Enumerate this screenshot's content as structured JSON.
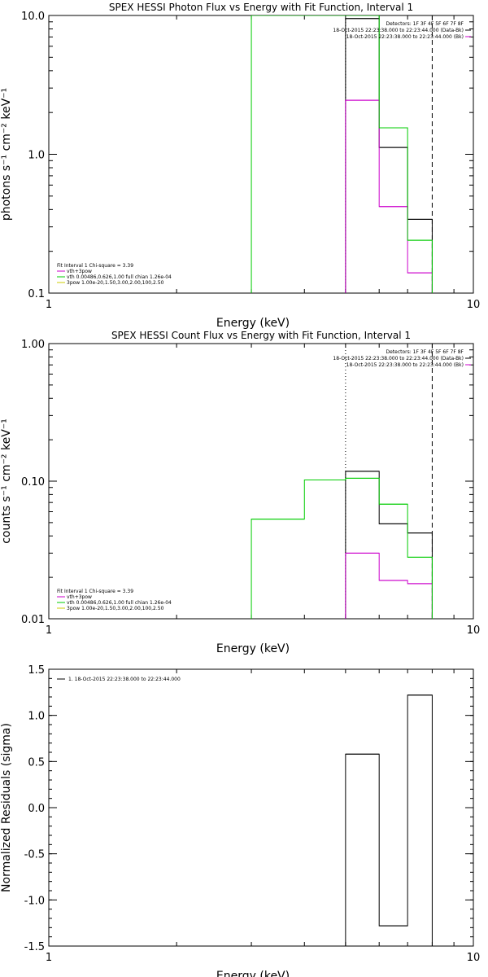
{
  "chart_data": [
    {
      "type": "line",
      "title": "SPEX HESSI Photon Flux vs Energy with Fit Function, Interval 1",
      "xlabel": "Energy (keV)",
      "ylabel": "photons s⁻¹ cm⁻² keV⁻¹",
      "xscale": "log",
      "yscale": "log",
      "xlim": [
        1,
        10
      ],
      "ylim": [
        0.1,
        10
      ],
      "xticks": [
        {
          "v": 1,
          "label": "1"
        },
        {
          "v": 10,
          "label": "10"
        }
      ],
      "yticks": [
        {
          "v": 0.1,
          "label": "0.1"
        },
        {
          "v": 1,
          "label": "1.0"
        },
        {
          "v": 10,
          "label": "10.0"
        }
      ],
      "header_right": [
        "Detectors: 1F 3F 4F 5F 6F 7F 8F",
        "18-Oct-2015 22:23:38.000 to 22:23:44.000 (Data-Bk)",
        "18-Oct-2015 22:23:38.000 to 22:23:44.000 (Bk)"
      ],
      "legend_left": [
        "Fit Interval 1    Chi-square = 3.39",
        "vth+3pow",
        "vth 0.00486,0.626,1.00  full chian 1.26e-04",
        "3pow 1.00e-20,1.50,3.00,2.00,100,2.50"
      ],
      "series": [
        {
          "name": "18-Oct-2015 22:23:38.000 to 22:23:44.000 (Data-Bk)",
          "color": "#000000",
          "edges": [
            5.0,
            6.0,
            7.0,
            8.0
          ],
          "values": [
            9.5,
            1.12,
            0.34
          ]
        },
        {
          "name": "18-Oct-2015 22:23:38.000 to 22:23:44.000 (Bk)",
          "color": "#cc00cc",
          "edges": [
            5.0,
            6.0,
            7.0,
            8.0
          ],
          "values": [
            2.45,
            0.42,
            0.14
          ]
        },
        {
          "name": "vth+3pow",
          "color": "#00cc00",
          "edges": [
            3.0,
            5.0,
            6.0,
            7.0,
            8.0
          ],
          "values": [
            10.0,
            10.0,
            1.55,
            0.24
          ]
        }
      ],
      "vlines": [
        {
          "x": 5.0,
          "style": "dotted",
          "color": "#000000"
        },
        {
          "x": 8.0,
          "style": "dashed",
          "color": "#000000"
        }
      ]
    },
    {
      "type": "line",
      "title": "SPEX HESSI Count Flux vs Energy with Fit Function, Interval 1",
      "xlabel": "Energy (keV)",
      "ylabel": "counts s⁻¹ cm⁻² keV⁻¹",
      "xscale": "log",
      "yscale": "log",
      "xlim": [
        1,
        10
      ],
      "ylim": [
        0.01,
        1
      ],
      "xticks": [
        {
          "v": 1,
          "label": "1"
        },
        {
          "v": 10,
          "label": "10"
        }
      ],
      "yticks": [
        {
          "v": 0.01,
          "label": "0.01"
        },
        {
          "v": 0.1,
          "label": "0.10"
        },
        {
          "v": 1,
          "label": "1.00"
        }
      ],
      "header_right": [
        "Detectors: 1F 3F 4F 5F 6F 7F 8F",
        "18-Oct-2015 22:23:38.000 to 22:23:44.000 (Data-Bk)",
        "18-Oct-2015 22:23:38.000 to 22:23:44.000 (Bk)"
      ],
      "legend_left": [
        "Fit Interval 1    Chi-square = 3.39",
        "vth+3pow",
        "vth 0.00486,0.626,1.00  full chian 1.26e-04",
        "3pow 1.00e-20,1.50,3.00,2.00,100,2.50"
      ],
      "series": [
        {
          "name": "18-Oct-2015 22:23:38.000 to 22:23:44.000 (Data-Bk)",
          "color": "#000000",
          "edges": [
            5.0,
            6.0,
            7.0,
            8.0
          ],
          "values": [
            0.118,
            0.049,
            0.042
          ]
        },
        {
          "name": "18-Oct-2015 22:23:38.000 to 22:23:44.000 (Bk)",
          "color": "#cc00cc",
          "edges": [
            5.0,
            6.0,
            7.0,
            8.0
          ],
          "values": [
            0.03,
            0.019,
            0.018
          ]
        },
        {
          "name": "vth+3pow",
          "color": "#00cc00",
          "edges": [
            3.0,
            4.0,
            5.0,
            6.0,
            7.0,
            8.0
          ],
          "values": [
            0.053,
            0.102,
            0.105,
            0.068,
            0.028
          ]
        }
      ],
      "vlines": [
        {
          "x": 5.0,
          "style": "dotted",
          "color": "#000000"
        },
        {
          "x": 8.0,
          "style": "dashed",
          "color": "#000000"
        }
      ]
    },
    {
      "type": "line",
      "title": "",
      "xlabel": "Energy (keV)",
      "ylabel": "Normalized Residuals (sigma)",
      "xscale": "log",
      "yscale": "linear",
      "xlim": [
        1,
        10
      ],
      "ylim": [
        -1.5,
        1.5
      ],
      "xticks": [
        {
          "v": 1,
          "label": "1"
        },
        {
          "v": 10,
          "label": "10"
        }
      ],
      "yticks": [
        {
          "v": -1.5,
          "label": "-1.5"
        },
        {
          "v": -1.0,
          "label": "-1.0"
        },
        {
          "v": -0.5,
          "label": "-0.5"
        },
        {
          "v": 0.0,
          "label": "0.0"
        },
        {
          "v": 0.5,
          "label": "0.5"
        },
        {
          "v": 1.0,
          "label": "1.0"
        },
        {
          "v": 1.5,
          "label": "1.5"
        }
      ],
      "legend_left": [
        "1. 18-Oct-2015 22:23:38.000 to 22:23:44.000"
      ],
      "series": [
        {
          "name": "1. 18-Oct-2015 22:23:38.000 to 22:23:44.000",
          "color": "#000000",
          "edges": [
            5.0,
            6.0,
            7.0,
            8.0
          ],
          "values": [
            0.58,
            -1.28,
            1.22
          ]
        }
      ]
    }
  ]
}
